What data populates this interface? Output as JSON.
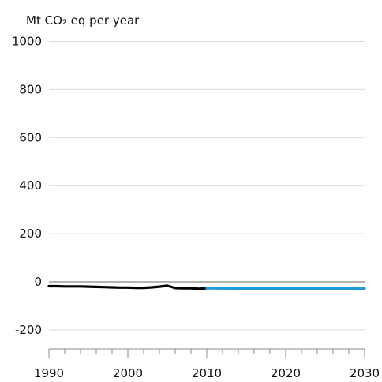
{
  "chart_data": {
    "type": "line",
    "ylabel": "Mt CO₂ eq per year",
    "ylim": [
      -300,
      1000
    ],
    "xlim": [
      1990,
      2030
    ],
    "x_ticks": [
      1990,
      2000,
      2010,
      2020,
      2030
    ],
    "y_ticks": [
      1000,
      800,
      600,
      400,
      200,
      0,
      -200
    ],
    "grid": true,
    "series": [
      {
        "color": "#000000",
        "x": [
          1990,
          1991,
          1992,
          1993,
          1994,
          1995,
          1996,
          1997,
          1998,
          1999,
          2000,
          2001,
          2002,
          2003,
          2004,
          2005,
          2006,
          2007,
          2008,
          2009,
          2010
        ],
        "values": [
          -18,
          -18,
          -19,
          -19,
          -19,
          -20,
          -21,
          -22,
          -23,
          -24,
          -24,
          -25,
          -25,
          -23,
          -20,
          -16,
          -26,
          -27,
          -27,
          -29,
          -27
        ]
      },
      {
        "color": "#1e9bd7",
        "x": [
          2010,
          2015,
          2020,
          2025,
          2030
        ],
        "values": [
          -27,
          -28,
          -28,
          -28,
          -28
        ]
      }
    ]
  }
}
